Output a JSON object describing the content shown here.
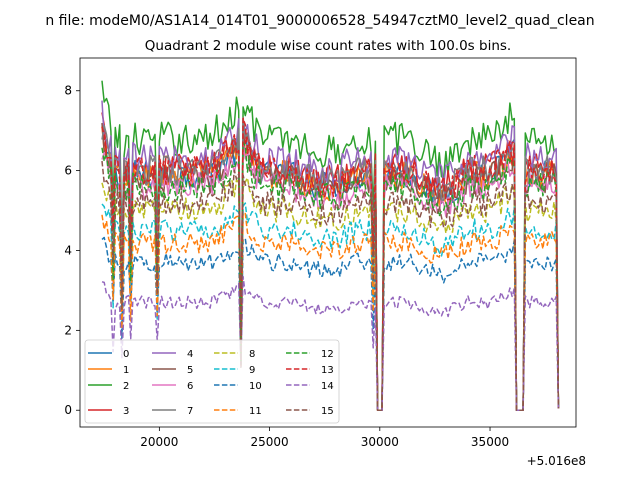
{
  "figure": {
    "suptitle": "n file: modeM0/AS1A14_014T01_9000006528_54947cztM0_level2_quad_clean"
  },
  "chart_data": {
    "type": "line",
    "title": "Quadrant 2 module wise count rates with 100.0s bins.",
    "xlabel": "",
    "ylabel": "",
    "x_offset_label": "+5.016e8",
    "x_offset": 501600000,
    "xlim": [
      16400,
      38900
    ],
    "ylim": [
      -0.42,
      8.82
    ],
    "x_ticks": [
      20000,
      25000,
      30000,
      35000
    ],
    "x_tick_labels": [
      "20000",
      "25000",
      "30000",
      "35000"
    ],
    "y_ticks": [
      0,
      2,
      4,
      6,
      8
    ],
    "y_tick_labels": [
      "0",
      "2",
      "4",
      "6",
      "8"
    ],
    "grid": false,
    "legend_location": "lower-left",
    "legend_columns": 4,
    "x_range": [
      17400,
      38100
    ],
    "bin_seconds": 100,
    "gaps": [
      {
        "start": 23650,
        "end": 23750,
        "floor": 1.0
      },
      {
        "start": 29900,
        "end": 30150,
        "floor": 0.0
      },
      {
        "start": 36200,
        "end": 36550,
        "floor": 0.0
      },
      {
        "start": 38100,
        "end": 38100,
        "floor": 0.0
      }
    ],
    "series": [
      {
        "name": "0",
        "color": "#1f77b4",
        "style": "solid",
        "level": 5.9
      },
      {
        "name": "1",
        "color": "#ff7f0e",
        "style": "solid",
        "level": 5.9
      },
      {
        "name": "2",
        "color": "#2ca02c",
        "style": "solid",
        "level": 6.8
      },
      {
        "name": "3",
        "color": "#d62728",
        "style": "solid",
        "level": 6.1
      },
      {
        "name": "4",
        "color": "#9467bd",
        "style": "solid",
        "level": 6.3
      },
      {
        "name": "5",
        "color": "#8c564b",
        "style": "solid",
        "level": 5.8
      },
      {
        "name": "6",
        "color": "#e377c2",
        "style": "solid",
        "level": 5.6
      },
      {
        "name": "7",
        "color": "#7f7f7f",
        "style": "solid",
        "level": 6.0
      },
      {
        "name": "8",
        "color": "#bcbd22",
        "style": "dashed",
        "level": 5.0
      },
      {
        "name": "9",
        "color": "#17becf",
        "style": "dashed",
        "level": 4.5
      },
      {
        "name": "10",
        "color": "#1f77b4",
        "style": "dashed",
        "level": 3.7
      },
      {
        "name": "11",
        "color": "#ff7f0e",
        "style": "dashed",
        "level": 4.2
      },
      {
        "name": "12",
        "color": "#2ca02c",
        "style": "dashed",
        "level": 5.6
      },
      {
        "name": "13",
        "color": "#d62728",
        "style": "dashed",
        "level": 6.0
      },
      {
        "name": "14",
        "color": "#9467bd",
        "style": "dashed",
        "level": 2.7
      },
      {
        "name": "15",
        "color": "#8c564b",
        "style": "dashed",
        "level": 5.2
      }
    ]
  }
}
